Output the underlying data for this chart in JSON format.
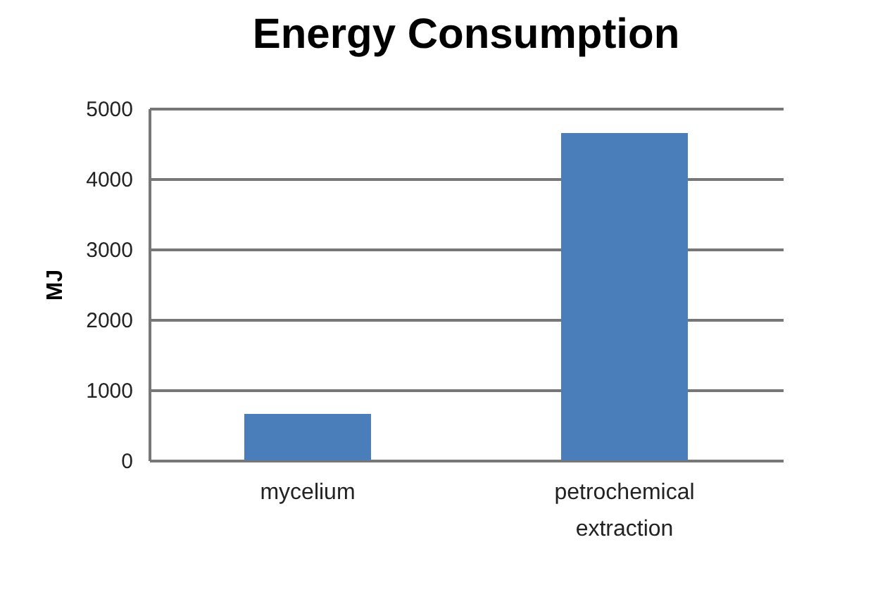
{
  "chart_data": {
    "type": "bar",
    "title": "Energy Consumption",
    "ylabel": "MJ",
    "categories": [
      "mycelium",
      "petrochemical extraction"
    ],
    "values": [
      660,
      4650
    ],
    "color": "#4a7ebb",
    "ylim": [
      0,
      5000
    ],
    "yticks": [
      0,
      1000,
      2000,
      3000,
      4000,
      5000
    ],
    "grid": "y"
  }
}
